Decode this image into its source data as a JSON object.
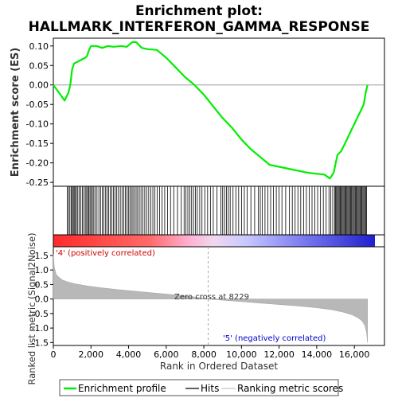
{
  "chart_data": {
    "type": "line",
    "title_line1": "Enrichment plot:",
    "title_line2": "HALLMARK_INTERFERON_GAMMA_RESPONSE",
    "es_panel": {
      "ylabel": "Enrichment score (ES)",
      "ylim": [
        -0.26,
        0.12
      ],
      "yticks": [
        0.1,
        0.05,
        0.0,
        -0.05,
        -0.1,
        -0.15,
        -0.2,
        -0.25
      ],
      "ytick_labels": [
        "0.10",
        "0.05",
        "0.00",
        "-0.05",
        "-0.10",
        "-0.15",
        "-0.20",
        "-0.25"
      ],
      "series": [
        {
          "name": "Enrichment profile",
          "color": "#00ee00",
          "x": [
            0,
            300,
            600,
            800,
            900,
            1000,
            1100,
            1300,
            1500,
            1700,
            1800,
            1900,
            2000,
            2300,
            2600,
            2900,
            3200,
            3600,
            3900,
            4200,
            4400,
            4700,
            5000,
            5500,
            6000,
            6500,
            7000,
            7500,
            8000,
            8500,
            9000,
            9500,
            10000,
            10500,
            11000,
            11500,
            12000,
            12500,
            13000,
            13500,
            14000,
            14400,
            14700,
            14900,
            15100,
            15300,
            15500,
            15700,
            15900,
            16100,
            16300,
            16500,
            16600,
            16700
          ],
          "y": [
            0.0,
            -0.02,
            -0.04,
            -0.02,
            0.0,
            0.04,
            0.055,
            0.06,
            0.065,
            0.07,
            0.075,
            0.09,
            0.1,
            0.1,
            0.095,
            0.1,
            0.098,
            0.1,
            0.098,
            0.11,
            0.11,
            0.095,
            0.092,
            0.09,
            0.07,
            0.045,
            0.02,
            0.0,
            -0.025,
            -0.055,
            -0.085,
            -0.11,
            -0.14,
            -0.165,
            -0.185,
            -0.205,
            -0.21,
            -0.215,
            -0.22,
            -0.225,
            -0.228,
            -0.23,
            -0.24,
            -0.225,
            -0.18,
            -0.17,
            -0.15,
            -0.13,
            -0.11,
            -0.09,
            -0.07,
            -0.05,
            -0.02,
            0.0
          ]
        }
      ]
    },
    "hits": {
      "name": "Hits",
      "color": "#000000",
      "positions": [
        740,
        810,
        880,
        950,
        1010,
        1060,
        1110,
        1170,
        1230,
        1300,
        1380,
        1460,
        1540,
        1620,
        1700,
        1770,
        1830,
        1890,
        1950,
        2010,
        2080,
        2150,
        2230,
        2320,
        2420,
        2510,
        2600,
        2690,
        2780,
        2860,
        2940,
        3020,
        3110,
        3200,
        3280,
        3370,
        3460,
        3560,
        3650,
        3740,
        3830,
        3910,
        3990,
        4070,
        4150,
        4230,
        4310,
        4400,
        4480,
        4570,
        4660,
        4760,
        4860,
        4960,
        5070,
        5180,
        5290,
        5400,
        5520,
        5650,
        5780,
        5920,
        6070,
        6230,
        6400,
        6600,
        6800,
        6950,
        7050,
        7150,
        7250,
        7350,
        7450,
        7550,
        7650,
        7780,
        7900,
        8050,
        8200,
        8350,
        8500,
        8700,
        8900,
        9000,
        9100,
        9200,
        9300,
        9400,
        9550,
        9700,
        9850,
        10000,
        10150,
        10300,
        10500,
        10700,
        10900,
        11000,
        11100,
        11250,
        11400,
        11550,
        11700,
        11850,
        12000,
        12150,
        12350,
        12550,
        12700,
        12850,
        13000,
        13150,
        13300,
        13450,
        13600,
        13750,
        13900,
        14050,
        14200,
        14350,
        14500,
        14650,
        14750,
        14850,
        14950,
        15000,
        15050,
        15100,
        15150,
        15200,
        15250,
        15300,
        15350,
        15400,
        15450,
        15500,
        15550,
        15600,
        15650,
        15700,
        15750,
        15800,
        15850,
        15900,
        15950,
        16000,
        16050,
        16100,
        16150,
        16200,
        16250,
        16300,
        16350,
        16400,
        16450,
        16500,
        16550,
        16600,
        16650
      ]
    },
    "rank_panel": {
      "ylabel": "Ranked list metric (Signal2Noise)",
      "xlabel": "Rank in Ordered Dataset",
      "ylim": [
        -1.6,
        1.8
      ],
      "yticks": [
        1.5,
        1.0,
        0.5,
        0.0,
        -0.5,
        -1.0,
        -1.5
      ],
      "ytick_labels": [
        "1.5",
        "1.0",
        "0.5",
        "0.0",
        "-0.5",
        "-1.0",
        "-1.5"
      ],
      "xlim": [
        0,
        17600
      ],
      "xticks": [
        0,
        2000,
        4000,
        6000,
        8000,
        10000,
        12000,
        14000,
        16000
      ],
      "xtick_labels": [
        "0",
        "2,000",
        "4,000",
        "6,000",
        "8,000",
        "10,000",
        "12,000",
        "14,000",
        "16,000"
      ],
      "series": [
        {
          "name": "Ranking metric scores",
          "color": "#b0b0b0",
          "x": [
            0,
            50,
            150,
            300,
            500,
            800,
            1200,
            1800,
            2500,
            3500,
            4500,
            5500,
            6500,
            7500,
            8229,
            9000,
            10000,
            11000,
            12000,
            13000,
            14000,
            14800,
            15400,
            15900,
            16200,
            16400,
            16550,
            16650,
            16700
          ],
          "y": [
            1.55,
            1.1,
            0.85,
            0.75,
            0.65,
            0.58,
            0.52,
            0.45,
            0.39,
            0.32,
            0.26,
            0.2,
            0.14,
            0.07,
            0.0,
            -0.04,
            -0.09,
            -0.14,
            -0.19,
            -0.24,
            -0.3,
            -0.37,
            -0.45,
            -0.55,
            -0.65,
            -0.75,
            -0.9,
            -1.15,
            -1.5
          ]
        }
      ],
      "zero_cross_label": "Zero cross at 8229",
      "zero_cross_rank": 8229,
      "positive_label": "'4' (positively correlated)",
      "negative_label": "'5' (negatively correlated)"
    },
    "legend": {
      "position": "bottom",
      "items": [
        {
          "label": "Enrichment profile",
          "color": "#00ee00"
        },
        {
          "label": "Hits",
          "color": "#000000"
        },
        {
          "label": "Ranking metric scores",
          "color": "#c8c8c8"
        }
      ]
    }
  }
}
